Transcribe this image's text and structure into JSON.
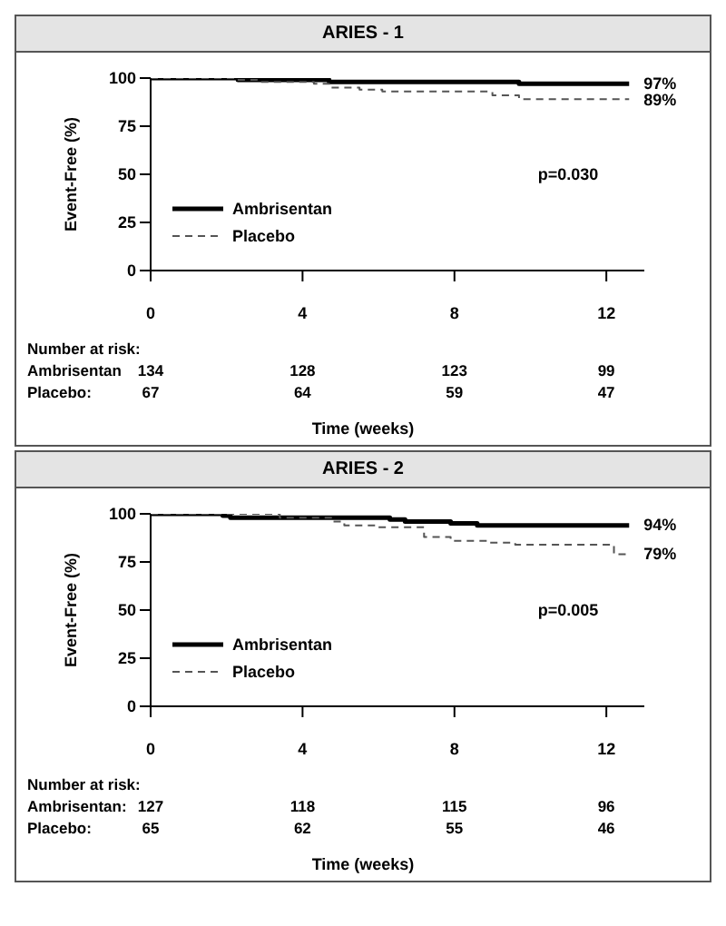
{
  "chart_data": [
    {
      "type": "step",
      "title": "ARIES - 1",
      "xlabel": "Time (weeks)",
      "ylabel": "Event-Free (%)",
      "xlim": [
        0,
        13
      ],
      "xticks": [
        0,
        4,
        8,
        12
      ],
      "ylim": [
        0,
        100
      ],
      "yticks": [
        0,
        25,
        50,
        75,
        100
      ],
      "legend": "bottom left",
      "marker": "none",
      "series": [
        {
          "name": "Ambrisentan",
          "color": "#000000",
          "line_style": "solid",
          "x": [
            0,
            2.3,
            4.7,
            9.7,
            12.6
          ],
          "values": [
            100,
            99,
            98,
            97,
            97
          ]
        },
        {
          "name": "Placebo",
          "color": "#555555",
          "line_style": "dashed",
          "x": [
            0,
            2.2,
            2.8,
            4.3,
            4.7,
            5.5,
            6.1,
            9,
            9.7,
            12.6
          ],
          "values": [
            100,
            99,
            98,
            97,
            95,
            94,
            93,
            91,
            89,
            89
          ]
        }
      ],
      "annotations": [
        "97%",
        "89%",
        "p=0.030",
        "Number at risk:",
        "Ambrisentan",
        "134",
        "128",
        "123",
        "99",
        "Placebo:",
        "67",
        "64",
        "59",
        "47"
      ]
    },
    {
      "type": "step",
      "title": "ARIES - 2",
      "xlabel": "Time (weeks)",
      "ylabel": "Event-Free (%)",
      "xlim": [
        0,
        13
      ],
      "xticks": [
        0,
        4,
        8,
        12
      ],
      "ylim": [
        0,
        100
      ],
      "yticks": [
        0,
        25,
        50,
        75,
        100
      ],
      "legend": "bottom left",
      "marker": "none",
      "series": [
        {
          "name": "Ambrisentan",
          "color": "#000000",
          "line_style": "solid",
          "x": [
            0,
            1.9,
            2.1,
            6.3,
            6.7,
            7.9,
            8.6,
            12.6
          ],
          "values": [
            100,
            99,
            98,
            97,
            96,
            95,
            94,
            94
          ]
        },
        {
          "name": "Placebo",
          "color": "#555555",
          "line_style": "dashed",
          "x": [
            0,
            3.4,
            4.8,
            5.1,
            6.0,
            7.2,
            7.9,
            8.9,
            9.6,
            12.2,
            12.6
          ],
          "values": [
            100,
            98,
            96,
            94,
            93,
            88,
            86,
            85,
            84,
            79,
            79
          ]
        }
      ],
      "annotations": [
        "94%",
        "79%",
        "p=0.005",
        "Number at risk:",
        "Ambrisentan:",
        "127",
        "118",
        "115",
        "96",
        "Placebo:",
        "65",
        "62",
        "55",
        "46"
      ]
    }
  ]
}
